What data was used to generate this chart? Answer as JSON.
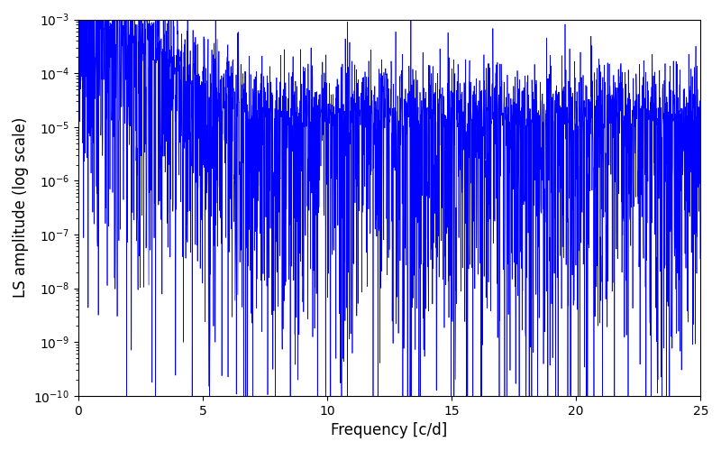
{
  "title": "",
  "xlabel": "Frequency [c/d]",
  "ylabel": "LS amplitude (log scale)",
  "xlim": [
    0,
    25
  ],
  "ylim": [
    1e-10,
    0.001
  ],
  "line_color": "#0000FF",
  "line_width": 0.5,
  "figsize": [
    8.0,
    5.0
  ],
  "dpi": 100,
  "freq_max": 25.0,
  "n_points": 3000,
  "seed": 12345,
  "background_color": "#ffffff"
}
